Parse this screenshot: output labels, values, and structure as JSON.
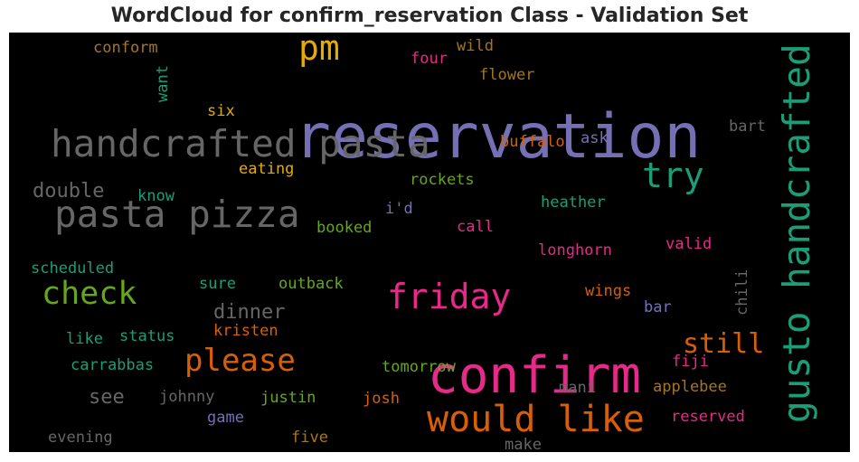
{
  "chart_data": {
    "type": "wordcloud",
    "title": "WordCloud for confirm_reservation Class - Validation Set",
    "background": "#000000",
    "words": [
      {
        "text": "reservation",
        "color": "#7570b3"
      },
      {
        "text": "confirm",
        "color": "#e7298a"
      },
      {
        "text": "handcrafted pasta",
        "color": "#666666"
      },
      {
        "text": "gusto handcrafted",
        "color": "#1b9e77"
      },
      {
        "text": "pasta pizza",
        "color": "#666666"
      },
      {
        "text": "would like",
        "color": "#d95f02"
      },
      {
        "text": "friday",
        "color": "#e7298a"
      },
      {
        "text": "pm",
        "color": "#e6ab02"
      },
      {
        "text": "try",
        "color": "#1b9e77"
      },
      {
        "text": "check",
        "color": "#66a61e"
      },
      {
        "text": "please",
        "color": "#d95f02"
      },
      {
        "text": "still",
        "color": "#d95f02"
      },
      {
        "text": "dinner",
        "color": "#666666"
      },
      {
        "text": "double",
        "color": "#666666"
      },
      {
        "text": "see",
        "color": "#666666"
      },
      {
        "text": "conform",
        "color": "#a6761d"
      },
      {
        "text": "wild",
        "color": "#a6761d"
      },
      {
        "text": "four",
        "color": "#e7298a"
      },
      {
        "text": "flower",
        "color": "#a6761d"
      },
      {
        "text": "want",
        "color": "#1b9e77"
      },
      {
        "text": "six",
        "color": "#e6ab02"
      },
      {
        "text": "bart",
        "color": "#666666"
      },
      {
        "text": "ask",
        "color": "#7570b3"
      },
      {
        "text": "buffalo",
        "color": "#d95f02"
      },
      {
        "text": "eating",
        "color": "#e6ab02"
      },
      {
        "text": "rockets",
        "color": "#66a61e"
      },
      {
        "text": "know",
        "color": "#1b9e77"
      },
      {
        "text": "heather",
        "color": "#1b9e77"
      },
      {
        "text": "i'd",
        "color": "#7570b3"
      },
      {
        "text": "booked",
        "color": "#66a61e"
      },
      {
        "text": "call",
        "color": "#e7298a"
      },
      {
        "text": "longhorn",
        "color": "#e7298a"
      },
      {
        "text": "valid",
        "color": "#e7298a"
      },
      {
        "text": "scheduled",
        "color": "#1b9e77"
      },
      {
        "text": "sure",
        "color": "#1b9e77"
      },
      {
        "text": "outback",
        "color": "#66a61e"
      },
      {
        "text": "wings",
        "color": "#d95f02"
      },
      {
        "text": "chili",
        "color": "#666666"
      },
      {
        "text": "bar",
        "color": "#7570b3"
      },
      {
        "text": "kristen",
        "color": "#d95f02"
      },
      {
        "text": "like",
        "color": "#1b9e77"
      },
      {
        "text": "status",
        "color": "#1b9e77"
      },
      {
        "text": "carrabbas",
        "color": "#1b9e77"
      },
      {
        "text": "tomorrow",
        "color": "#66a61e"
      },
      {
        "text": "fiji",
        "color": "#e7298a"
      },
      {
        "text": "mani",
        "color": "#666666"
      },
      {
        "text": "applebee",
        "color": "#a6761d"
      },
      {
        "text": "johnny",
        "color": "#666666"
      },
      {
        "text": "justin",
        "color": "#66a61e"
      },
      {
        "text": "josh",
        "color": "#d95f02"
      },
      {
        "text": "game",
        "color": "#7570b3"
      },
      {
        "text": "reserved",
        "color": "#e7298a"
      },
      {
        "text": "evening",
        "color": "#666666"
      },
      {
        "text": "five",
        "color": "#a6761d"
      },
      {
        "text": "make",
        "color": "#666666"
      }
    ]
  }
}
